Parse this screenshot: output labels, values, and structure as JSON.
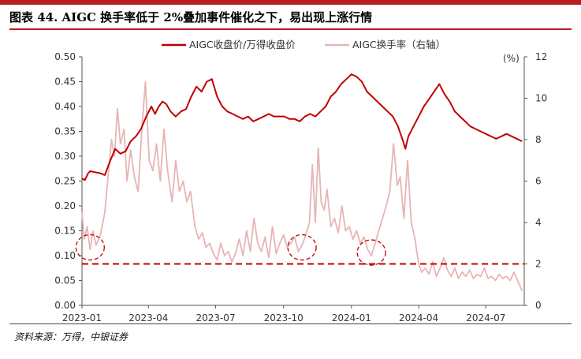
{
  "figure": {
    "title": "图表 44. AIGC 换手率低于 2%叠加事件催化之下，易出现上涨行情",
    "source": "资料来源：万得，中银证券"
  },
  "colors": {
    "accent": "#b81c22",
    "price_line": "#c00000",
    "turnover_line": "#e8b4b4",
    "threshold_line": "#c00000"
  },
  "chart_data": {
    "type": "line",
    "title": "",
    "xlabel": "",
    "ylabel": "",
    "y2_unit": "(%)",
    "x_ticks": [
      "2023-01",
      "2023-04",
      "2023-07",
      "2023-10",
      "2024-01",
      "2024-04",
      "2024-07"
    ],
    "y_left": {
      "min": 0,
      "max": 0.5,
      "ticks": [
        "0.00",
        "0.05",
        "0.10",
        "0.15",
        "0.20",
        "0.25",
        "0.30",
        "0.35",
        "0.40",
        "0.45",
        "0.50"
      ]
    },
    "y_right": {
      "min": 0,
      "max": 12,
      "ticks": [
        "0",
        "2",
        "4",
        "6",
        "8",
        "10",
        "12"
      ]
    },
    "legend_position": "top-center",
    "threshold": {
      "axis": "right",
      "value": 2,
      "style": "dashed"
    },
    "highlight_circles": [
      {
        "date": "2023-01-12",
        "value": 2.8,
        "axis": "right"
      },
      {
        "date": "2023-10-26",
        "value": 2.8,
        "axis": "right"
      },
      {
        "date": "2024-01-28",
        "value": 2.55,
        "axis": "right"
      }
    ],
    "series": [
      {
        "name": "AIGC收盘价/万得收盘价",
        "axis": "left",
        "points": [
          [
            "2023-01-01",
            0.255
          ],
          [
            "2023-01-05",
            0.252
          ],
          [
            "2023-01-09",
            0.265
          ],
          [
            "2023-01-12",
            0.27
          ],
          [
            "2023-01-18",
            0.268
          ],
          [
            "2023-01-25",
            0.266
          ],
          [
            "2023-02-01",
            0.262
          ],
          [
            "2023-02-08",
            0.29
          ],
          [
            "2023-02-15",
            0.315
          ],
          [
            "2023-02-22",
            0.305
          ],
          [
            "2023-03-01",
            0.31
          ],
          [
            "2023-03-08",
            0.33
          ],
          [
            "2023-03-15",
            0.34
          ],
          [
            "2023-03-22",
            0.355
          ],
          [
            "2023-03-29",
            0.38
          ],
          [
            "2023-04-05",
            0.4
          ],
          [
            "2023-04-10",
            0.385
          ],
          [
            "2023-04-15",
            0.4
          ],
          [
            "2023-04-20",
            0.41
          ],
          [
            "2023-04-25",
            0.405
          ],
          [
            "2023-05-01",
            0.39
          ],
          [
            "2023-05-08",
            0.38
          ],
          [
            "2023-05-15",
            0.39
          ],
          [
            "2023-05-22",
            0.395
          ],
          [
            "2023-05-29",
            0.42
          ],
          [
            "2023-06-05",
            0.44
          ],
          [
            "2023-06-12",
            0.43
          ],
          [
            "2023-06-19",
            0.45
          ],
          [
            "2023-06-26",
            0.455
          ],
          [
            "2023-07-03",
            0.42
          ],
          [
            "2023-07-10",
            0.4
          ],
          [
            "2023-07-17",
            0.39
          ],
          [
            "2023-07-24",
            0.385
          ],
          [
            "2023-07-31",
            0.38
          ],
          [
            "2023-08-07",
            0.375
          ],
          [
            "2023-08-14",
            0.38
          ],
          [
            "2023-08-21",
            0.37
          ],
          [
            "2023-08-28",
            0.375
          ],
          [
            "2023-09-04",
            0.38
          ],
          [
            "2023-09-11",
            0.385
          ],
          [
            "2023-09-18",
            0.38
          ],
          [
            "2023-09-25",
            0.38
          ],
          [
            "2023-10-02",
            0.38
          ],
          [
            "2023-10-09",
            0.375
          ],
          [
            "2023-10-16",
            0.375
          ],
          [
            "2023-10-23",
            0.37
          ],
          [
            "2023-10-30",
            0.38
          ],
          [
            "2023-11-06",
            0.385
          ],
          [
            "2023-11-13",
            0.38
          ],
          [
            "2023-11-20",
            0.39
          ],
          [
            "2023-11-27",
            0.4
          ],
          [
            "2023-12-04",
            0.42
          ],
          [
            "2023-12-11",
            0.43
          ],
          [
            "2023-12-18",
            0.445
          ],
          [
            "2023-12-25",
            0.455
          ],
          [
            "2024-01-01",
            0.465
          ],
          [
            "2024-01-08",
            0.46
          ],
          [
            "2024-01-15",
            0.45
          ],
          [
            "2024-01-22",
            0.43
          ],
          [
            "2024-01-29",
            0.42
          ],
          [
            "2024-02-05",
            0.41
          ],
          [
            "2024-02-12",
            0.4
          ],
          [
            "2024-02-19",
            0.39
          ],
          [
            "2024-02-26",
            0.38
          ],
          [
            "2024-03-04",
            0.36
          ],
          [
            "2024-03-11",
            0.33
          ],
          [
            "2024-03-14",
            0.315
          ],
          [
            "2024-03-18",
            0.34
          ],
          [
            "2024-03-25",
            0.36
          ],
          [
            "2024-04-01",
            0.38
          ],
          [
            "2024-04-08",
            0.4
          ],
          [
            "2024-04-15",
            0.415
          ],
          [
            "2024-04-22",
            0.43
          ],
          [
            "2024-04-29",
            0.445
          ],
          [
            "2024-05-06",
            0.425
          ],
          [
            "2024-05-13",
            0.41
          ],
          [
            "2024-05-20",
            0.39
          ],
          [
            "2024-05-27",
            0.38
          ],
          [
            "2024-06-03",
            0.37
          ],
          [
            "2024-06-10",
            0.36
          ],
          [
            "2024-06-17",
            0.355
          ],
          [
            "2024-06-24",
            0.35
          ],
          [
            "2024-07-01",
            0.345
          ],
          [
            "2024-07-08",
            0.34
          ],
          [
            "2024-07-15",
            0.335
          ],
          [
            "2024-07-22",
            0.34
          ],
          [
            "2024-07-29",
            0.345
          ],
          [
            "2024-08-05",
            0.34
          ],
          [
            "2024-08-12",
            0.335
          ],
          [
            "2024-08-19",
            0.33
          ]
        ]
      },
      {
        "name": "AIGC换手率（右轴）",
        "axis": "right",
        "points": [
          [
            "2023-01-01",
            4.5
          ],
          [
            "2023-01-04",
            3.2
          ],
          [
            "2023-01-08",
            3.8
          ],
          [
            "2023-01-12",
            2.7
          ],
          [
            "2023-01-16",
            3.6
          ],
          [
            "2023-01-20",
            2.9
          ],
          [
            "2023-01-26",
            3.4
          ],
          [
            "2023-02-01",
            4.5
          ],
          [
            "2023-02-06",
            6.5
          ],
          [
            "2023-02-10",
            8.0
          ],
          [
            "2023-02-14",
            7.2
          ],
          [
            "2023-02-18",
            9.5
          ],
          [
            "2023-02-22",
            7.8
          ],
          [
            "2023-02-27",
            8.5
          ],
          [
            "2023-03-03",
            6.0
          ],
          [
            "2023-03-08",
            7.5
          ],
          [
            "2023-03-13",
            6.2
          ],
          [
            "2023-03-18",
            5.5
          ],
          [
            "2023-03-23",
            8.5
          ],
          [
            "2023-03-28",
            10.8
          ],
          [
            "2023-04-02",
            7.0
          ],
          [
            "2023-04-07",
            6.5
          ],
          [
            "2023-04-12",
            7.8
          ],
          [
            "2023-04-17",
            6.0
          ],
          [
            "2023-04-22",
            8.5
          ],
          [
            "2023-04-27",
            6.5
          ],
          [
            "2023-05-03",
            5.0
          ],
          [
            "2023-05-08",
            7.0
          ],
          [
            "2023-05-13",
            5.5
          ],
          [
            "2023-05-18",
            6.0
          ],
          [
            "2023-05-23",
            5.0
          ],
          [
            "2023-05-28",
            5.5
          ],
          [
            "2023-06-03",
            3.8
          ],
          [
            "2023-06-08",
            3.2
          ],
          [
            "2023-06-13",
            3.5
          ],
          [
            "2023-06-18",
            2.8
          ],
          [
            "2023-06-23",
            3.0
          ],
          [
            "2023-06-28",
            2.5
          ],
          [
            "2023-07-03",
            2.2
          ],
          [
            "2023-07-08",
            3.0
          ],
          [
            "2023-07-13",
            2.4
          ],
          [
            "2023-07-18",
            2.6
          ],
          [
            "2023-07-23",
            2.1
          ],
          [
            "2023-07-28",
            2.5
          ],
          [
            "2023-08-02",
            3.2
          ],
          [
            "2023-08-07",
            2.4
          ],
          [
            "2023-08-12",
            3.6
          ],
          [
            "2023-08-17",
            2.6
          ],
          [
            "2023-08-22",
            4.2
          ],
          [
            "2023-08-27",
            3.0
          ],
          [
            "2023-09-01",
            2.6
          ],
          [
            "2023-09-06",
            3.3
          ],
          [
            "2023-09-11",
            2.3
          ],
          [
            "2023-09-16",
            3.8
          ],
          [
            "2023-09-21",
            2.5
          ],
          [
            "2023-09-26",
            3.0
          ],
          [
            "2023-10-01",
            3.4
          ],
          [
            "2023-10-06",
            2.8
          ],
          [
            "2023-10-11",
            3.0
          ],
          [
            "2023-10-16",
            3.3
          ],
          [
            "2023-10-21",
            2.6
          ],
          [
            "2023-10-26",
            2.9
          ],
          [
            "2023-10-31",
            3.4
          ],
          [
            "2023-11-05",
            4.0
          ],
          [
            "2023-11-09",
            6.8
          ],
          [
            "2023-11-13",
            4.0
          ],
          [
            "2023-11-17",
            7.6
          ],
          [
            "2023-11-21",
            5.0
          ],
          [
            "2023-11-25",
            4.6
          ],
          [
            "2023-11-29",
            5.6
          ],
          [
            "2023-12-04",
            3.8
          ],
          [
            "2023-12-09",
            4.2
          ],
          [
            "2023-12-14",
            3.5
          ],
          [
            "2023-12-19",
            4.8
          ],
          [
            "2023-12-24",
            3.6
          ],
          [
            "2023-12-29",
            3.8
          ],
          [
            "2024-01-03",
            3.2
          ],
          [
            "2024-01-08",
            3.6
          ],
          [
            "2024-01-13",
            3.0
          ],
          [
            "2024-01-18",
            3.3
          ],
          [
            "2024-01-23",
            2.7
          ],
          [
            "2024-01-28",
            2.4
          ],
          [
            "2024-02-02",
            3.0
          ],
          [
            "2024-02-07",
            3.6
          ],
          [
            "2024-02-12",
            4.2
          ],
          [
            "2024-02-17",
            4.8
          ],
          [
            "2024-02-22",
            5.5
          ],
          [
            "2024-02-27",
            7.8
          ],
          [
            "2024-03-03",
            5.8
          ],
          [
            "2024-03-07",
            6.2
          ],
          [
            "2024-03-12",
            4.2
          ],
          [
            "2024-03-17",
            7.0
          ],
          [
            "2024-03-22",
            4.0
          ],
          [
            "2024-03-27",
            3.2
          ],
          [
            "2024-04-01",
            2.0
          ],
          [
            "2024-04-05",
            1.6
          ],
          [
            "2024-04-10",
            1.8
          ],
          [
            "2024-04-15",
            1.5
          ],
          [
            "2024-04-20",
            2.1
          ],
          [
            "2024-04-25",
            1.4
          ],
          [
            "2024-04-30",
            1.8
          ],
          [
            "2024-05-05",
            2.3
          ],
          [
            "2024-05-10",
            1.7
          ],
          [
            "2024-05-15",
            1.4
          ],
          [
            "2024-05-20",
            1.8
          ],
          [
            "2024-05-25",
            1.3
          ],
          [
            "2024-05-30",
            1.6
          ],
          [
            "2024-06-04",
            1.4
          ],
          [
            "2024-06-09",
            1.7
          ],
          [
            "2024-06-14",
            1.3
          ],
          [
            "2024-06-19",
            1.5
          ],
          [
            "2024-06-24",
            1.4
          ],
          [
            "2024-06-29",
            1.8
          ],
          [
            "2024-07-04",
            1.3
          ],
          [
            "2024-07-09",
            1.4
          ],
          [
            "2024-07-14",
            1.2
          ],
          [
            "2024-07-19",
            1.5
          ],
          [
            "2024-07-24",
            1.3
          ],
          [
            "2024-07-29",
            1.4
          ],
          [
            "2024-08-03",
            1.2
          ],
          [
            "2024-08-08",
            1.6
          ],
          [
            "2024-08-13",
            1.2
          ],
          [
            "2024-08-19",
            0.7
          ]
        ]
      }
    ]
  }
}
